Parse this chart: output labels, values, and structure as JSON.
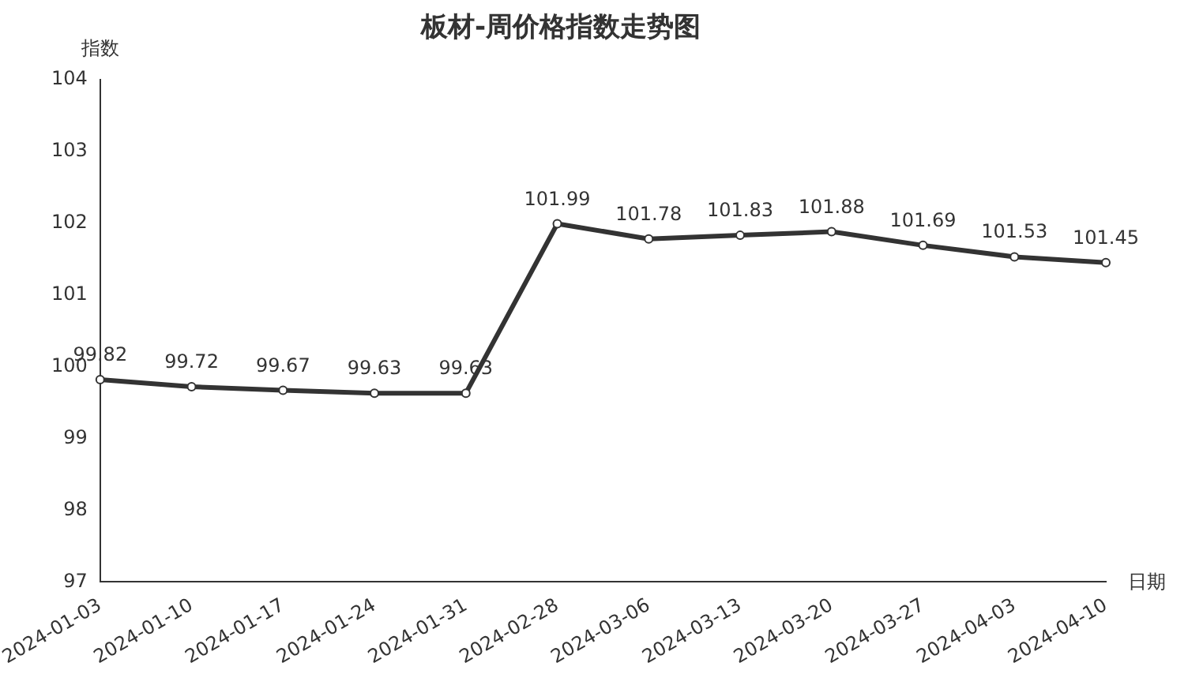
{
  "chart_data": {
    "type": "line",
    "title": "板材-周价格指数走势图",
    "ylabel": "指数",
    "xlabel": "日期",
    "categories": [
      "2024-01-03",
      "2024-01-10",
      "2024-01-17",
      "2024-01-24",
      "2024-01-31",
      "2024-02-28",
      "2024-03-06",
      "2024-03-13",
      "2024-03-20",
      "2024-03-27",
      "2024-04-03",
      "2024-04-10"
    ],
    "series": [
      {
        "color": "#333333",
        "values": [
          99.82,
          99.72,
          99.67,
          99.63,
          99.63,
          101.99,
          101.78,
          101.83,
          101.88,
          101.69,
          101.53,
          101.45
        ]
      }
    ],
    "ylim": [
      97,
      104
    ],
    "yticks": [
      97,
      98,
      99,
      100,
      101,
      102,
      103,
      104
    ],
    "grid": false,
    "legend": false,
    "marker": "circle",
    "line_style": "solid",
    "data_labels": true
  }
}
